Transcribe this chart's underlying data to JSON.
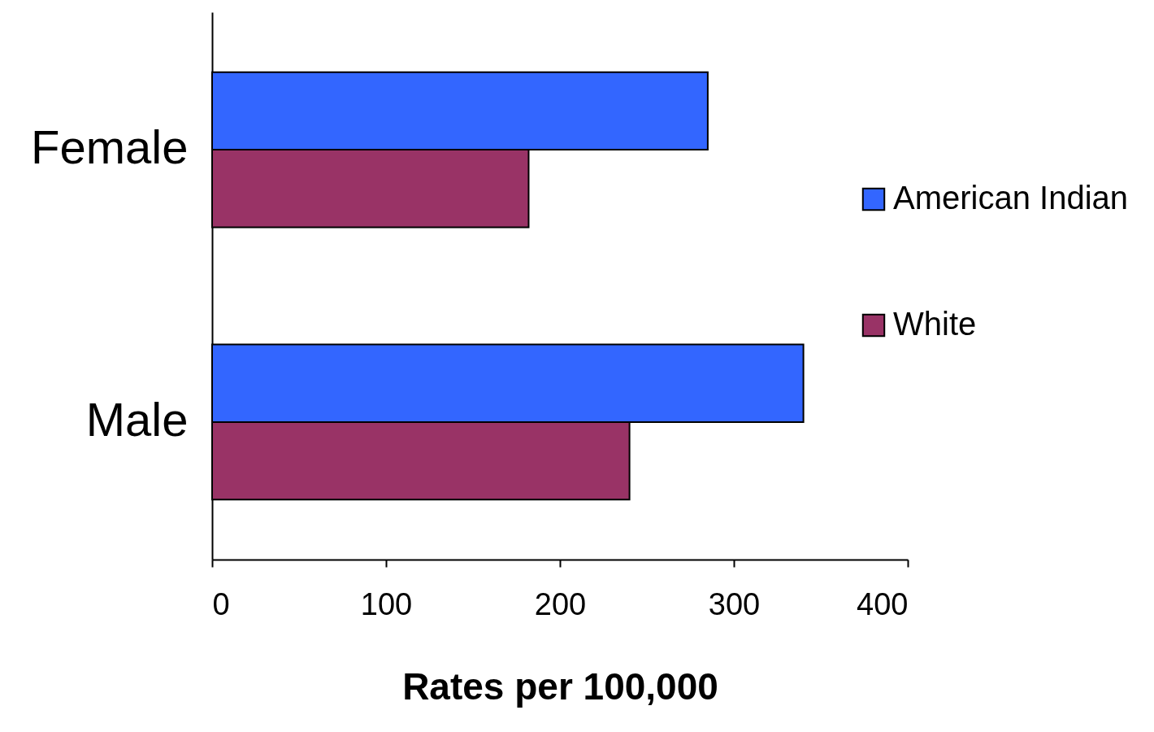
{
  "chart_data": {
    "type": "bar",
    "orientation": "horizontal",
    "categories": [
      "Female",
      "Male"
    ],
    "series": [
      {
        "name": "American Indian",
        "color": "#3366ff",
        "values": [
          285,
          340
        ]
      },
      {
        "name": "White",
        "color": "#993366",
        "values": [
          182,
          240
        ]
      }
    ],
    "xlabel": "Rates per 100,000",
    "xlim": [
      0,
      400
    ],
    "xticks": [
      0,
      100,
      200,
      300,
      400
    ],
    "grid": false,
    "legend": "right"
  }
}
